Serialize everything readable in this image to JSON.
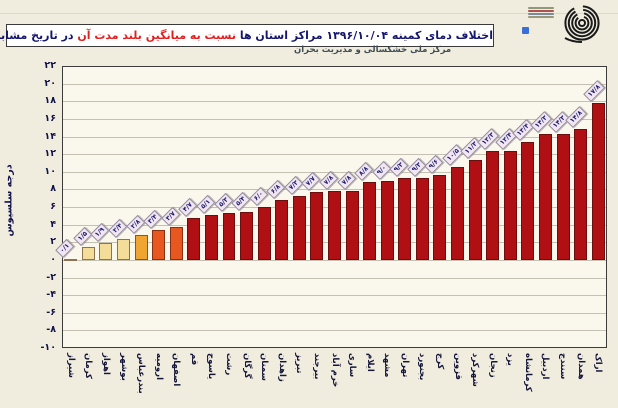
{
  "page": {
    "background": "#F0EDDF"
  },
  "header": {
    "title": {
      "part1": "اختلاف دمای کمینه ۱۳۹۶/۱۰/۰۴ مراکز استان ها ",
      "part2_red": "نسبت به میانگین بلند مدت آن",
      "part3": " در تاریخ مشابه بر حسب درجه سلسیوس"
    },
    "org_caption": "مرکز ملی خشکسالی و مدیریت بحران"
  },
  "chart_data": {
    "type": "bar",
    "title": "اختلاف دمای کمینه ۱۳۹۶/۱۰/۰۴ مراکز استان ها نسبت به میانگین بلند مدت آن در تاریخ مشابه بر حسب درجه سلسیوس",
    "ylabel": "درجه سلسیوس",
    "ylim": [
      -10,
      22
    ],
    "ytick_step": 2,
    "ytick_labels": [
      "۲۲",
      "۲۰",
      "۱۸",
      "۱۶",
      "۱۴",
      "۱۲",
      "۱۰",
      "۸",
      "۶",
      "۴",
      "۲",
      "۰",
      "-۲",
      "-۴",
      "-۶",
      "-۸",
      "-۱۰"
    ],
    "grid": "horizontal",
    "legend": "none",
    "categories": [
      "شیراز",
      "کرمان",
      "اهواز",
      "بوشهر",
      "بندرعباس",
      "ارومیه",
      "اصفهان",
      "قم",
      "یاسوج",
      "رشت",
      "گرگان",
      "سمنان",
      "زاهدان",
      "تبریز",
      "بیرجند",
      "خرم آباد",
      "ساری",
      "ایلام",
      "مشهد",
      "تهران",
      "بجنورد",
      "کرج",
      "قزوین",
      "شهرکرد",
      "زنجان",
      "یزد",
      "کرمانشاه",
      "اردبیل",
      "سنندج",
      "همدان",
      "اراک"
    ],
    "values": [
      0.1,
      1.5,
      1.9,
      2.4,
      2.8,
      3.4,
      3.7,
      4.7,
      5.1,
      5.3,
      5.4,
      6.0,
      6.8,
      7.3,
      7.7,
      7.8,
      7.8,
      8.8,
      9.0,
      9.3,
      9.3,
      9.6,
      10.5,
      11.3,
      12.3,
      12.4,
      13.4,
      14.3,
      14.3,
      14.8,
      17.8
    ],
    "value_labels": [
      "۰/۱",
      "۱/۵",
      "۱/۹",
      "۲/۴",
      "۲/۸",
      "۳/۴",
      "۳/۷",
      "۴/۷",
      "۵/۱",
      "۵/۳",
      "۵/۴",
      "۶/۰",
      "۶/۸",
      "۷/۳",
      "۷/۷",
      "۷/۸",
      "۷/۸",
      "۸/۸",
      "۹/۰",
      "۹/۳",
      "۹/۳",
      "۹/۶",
      "۱۰/۵",
      "۱۱/۳",
      "۱۲/۳",
      "۱۲/۴",
      "۱۳/۴",
      "۱۴/۳",
      "۱۴/۳",
      "۱۴/۸",
      "۱۷/۸"
    ],
    "bar_colors": [
      "#F3DD99",
      "#F3DD99",
      "#F3DD99",
      "#F3DD99",
      "#F0A431",
      "#E8571F",
      "#E8571F",
      "#B01013",
      "#B01013",
      "#B01013",
      "#B01013",
      "#B01013",
      "#B01013",
      "#B01013",
      "#B01013",
      "#B01013",
      "#B01013",
      "#B01013",
      "#B01013",
      "#B01013",
      "#B01013",
      "#B01013",
      "#B01013",
      "#B01013",
      "#B01013",
      "#B01013",
      "#B01013",
      "#B01013",
      "#B01013",
      "#B01013",
      "#B01013"
    ],
    "colors_legend": {
      "pale_yellow": "#F3DD99",
      "amber": "#F0A431",
      "orange_red": "#E8571F",
      "dark_red": "#B01013"
    }
  }
}
